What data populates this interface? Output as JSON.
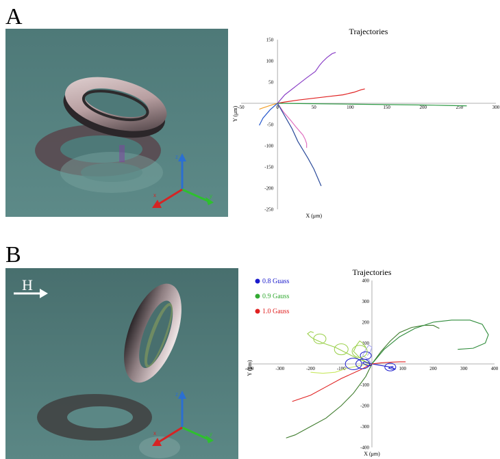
{
  "panels": {
    "a": {
      "letter": "A"
    },
    "b": {
      "letter": "B",
      "field_label": "H"
    }
  },
  "scene_axes": {
    "x": "x",
    "y": "y",
    "z": "z"
  },
  "colors": {
    "background_scene": "#4b7574",
    "torus": "#c8b0b2"
  },
  "chart_data": [
    {
      "type": "line",
      "title": "Trajectories",
      "xlabel": "X (μm)",
      "ylabel": "Y (μm)",
      "xlim": [
        -50,
        300
      ],
      "ylim": [
        -250,
        150
      ],
      "xticks": [
        -50,
        0,
        50,
        100,
        150,
        200,
        250,
        300
      ],
      "yticks": [
        150,
        100,
        50,
        0,
        -50,
        -100,
        -150,
        -200,
        -250
      ],
      "series": [
        {
          "color": "#8a3fc7",
          "x": [
            0,
            10,
            25,
            40,
            52,
            58,
            62,
            68,
            75,
            80
          ],
          "y": [
            0,
            20,
            40,
            60,
            75,
            90,
            98,
            108,
            117,
            120
          ]
        },
        {
          "color": "#e02020",
          "x": [
            0,
            10,
            30,
            50,
            70,
            90,
            105,
            115,
            120
          ],
          "y": [
            0,
            3,
            8,
            12,
            16,
            20,
            26,
            32,
            34
          ]
        },
        {
          "color": "#2e9a45",
          "x": [
            0,
            50,
            100,
            150,
            200,
            230,
            260
          ],
          "y": [
            0,
            -1,
            -2,
            -3,
            -4,
            -5,
            -6
          ]
        },
        {
          "color": "#e070c0",
          "x": [
            0,
            8,
            18,
            25,
            30,
            35,
            38,
            40,
            40
          ],
          "y": [
            0,
            -20,
            -40,
            -55,
            -65,
            -75,
            -85,
            -95,
            -105
          ]
        },
        {
          "color": "#2a4a9a",
          "x": [
            0,
            10,
            20,
            28,
            35,
            42,
            50,
            55,
            60
          ],
          "y": [
            0,
            -30,
            -60,
            -90,
            -110,
            -130,
            -155,
            -175,
            -195
          ]
        },
        {
          "color": "#f2a02a",
          "x": [
            0,
            -8,
            -15,
            -22,
            -25
          ],
          "y": [
            0,
            -4,
            -8,
            -12,
            -14
          ]
        },
        {
          "color": "#2255cc",
          "x": [
            0,
            -10,
            -20,
            -25
          ],
          "y": [
            0,
            -15,
            -35,
            -52
          ]
        }
      ]
    },
    {
      "type": "line",
      "title": "Trajectories",
      "xlabel": "X (μm)",
      "ylabel": "Y (μm)",
      "xlim": [
        -400,
        400
      ],
      "ylim": [
        -400,
        400
      ],
      "xticks": [
        -400,
        -300,
        -200,
        -100,
        100,
        200,
        300,
        400
      ],
      "yticks": [
        400,
        300,
        200,
        100,
        -100,
        -200,
        -300,
        -400
      ],
      "legend": [
        {
          "label": "0.8 Guass",
          "color": "#1a1acc"
        },
        {
          "label": "0.9 Gauss",
          "color": "#33aa33"
        },
        {
          "label": "1.0 Gauss",
          "color": "#e02020"
        }
      ],
      "series": [
        {
          "color": "#3c7a2a",
          "x": [
            0,
            30,
            60,
            90,
            130,
            170,
            200,
            220
          ],
          "y": [
            0,
            60,
            110,
            150,
            175,
            185,
            185,
            170
          ]
        },
        {
          "color": "#2e8b3a",
          "x": [
            0,
            40,
            90,
            140,
            200,
            260,
            320,
            360,
            380,
            370,
            330,
            280
          ],
          "y": [
            0,
            70,
            130,
            170,
            200,
            210,
            210,
            190,
            140,
            100,
            75,
            70
          ]
        },
        {
          "color": "#3c7a2a",
          "x": [
            0,
            -20,
            -60,
            -100,
            -150,
            -200,
            -250,
            -280
          ],
          "y": [
            0,
            -60,
            -140,
            -200,
            -260,
            -300,
            -340,
            -355
          ]
        },
        {
          "color": "#e02020",
          "x": [
            0,
            -40,
            -100,
            -150,
            -200,
            -260
          ],
          "y": [
            0,
            -30,
            -70,
            -110,
            -150,
            -180
          ]
        },
        {
          "color": "#9ad04a",
          "x": [
            0,
            -40,
            -80,
            -120,
            -160,
            -190,
            -200,
            -210,
            -200,
            -190
          ],
          "y": [
            0,
            20,
            50,
            80,
            100,
            120,
            130,
            145,
            155,
            150
          ]
        },
        {
          "color": "#c8e860",
          "x": [
            0,
            -30,
            -80,
            -120,
            -160,
            -200
          ],
          "y": [
            0,
            -5,
            -20,
            -40,
            -45,
            -40
          ]
        },
        {
          "color": "#9ad04a",
          "x": [
            0,
            -20,
            -40,
            -60,
            -50,
            -40,
            -30,
            -20
          ],
          "y": [
            0,
            10,
            30,
            60,
            90,
            110,
            100,
            80
          ]
        },
        {
          "color": "#aaaaee",
          "x": [
            0,
            -10,
            -30,
            -20,
            -10,
            0,
            -5,
            -15
          ],
          "y": [
            0,
            20,
            40,
            70,
            90,
            80,
            60,
            40
          ]
        },
        {
          "color": "#1a1acc",
          "x": [
            0,
            20,
            40,
            60,
            70,
            75,
            65,
            55,
            60,
            70
          ],
          "y": [
            0,
            -5,
            -10,
            -15,
            -20,
            -25,
            -25,
            -20,
            -15,
            -12
          ]
        },
        {
          "color": "#e02020",
          "x": [
            0,
            30,
            60,
            90,
            110
          ],
          "y": [
            0,
            5,
            8,
            10,
            10
          ]
        },
        {
          "color": "#1a1acc",
          "x": [
            0,
            -15,
            -25,
            -30,
            -20,
            -10,
            0
          ],
          "y": [
            0,
            5,
            10,
            5,
            -5,
            -10,
            -5
          ]
        }
      ]
    }
  ]
}
